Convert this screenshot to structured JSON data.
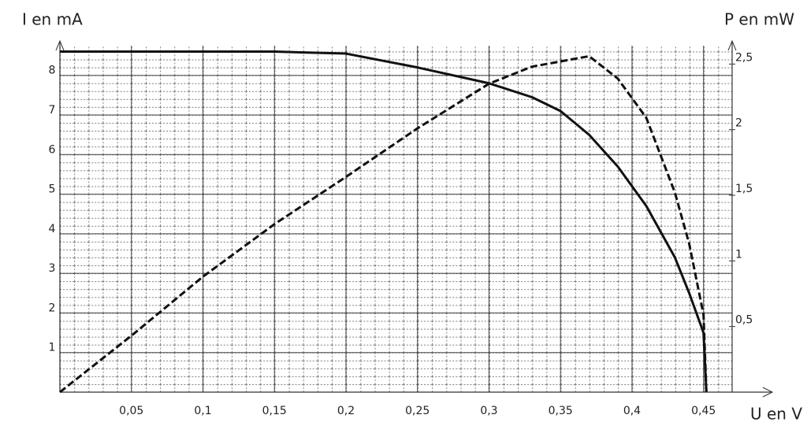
{
  "chart_data": {
    "type": "line",
    "y_label": "I en mA",
    "y2_label": "P en mW",
    "x_label": "U en V",
    "x": [
      0,
      0.05,
      0.1,
      0.15,
      0.2,
      0.25,
      0.3,
      0.33,
      0.35,
      0.37,
      0.39,
      0.41,
      0.43,
      0.44,
      0.45,
      0.452
    ],
    "series": [
      {
        "color": "#111111",
        "style": "solid",
        "values": [
          8.6,
          8.6,
          8.6,
          8.6,
          8.55,
          8.2,
          7.8,
          7.45,
          7.1,
          6.5,
          5.7,
          4.7,
          3.4,
          2.5,
          1.5,
          0
        ]
      },
      {
        "color": "#111111",
        "style": "dashed",
        "axis": "y2",
        "values": [
          0,
          0.43,
          0.88,
          1.28,
          1.64,
          2.01,
          2.35,
          2.48,
          2.52,
          2.56,
          2.39,
          2.09,
          1.52,
          1.13,
          0.59,
          0
        ]
      }
    ],
    "xlim": [
      0,
      0.47
    ],
    "xticks": [
      {
        "value": 0.05,
        "label": "0,05"
      },
      {
        "value": 0.1,
        "label": "0,1"
      },
      {
        "value": 0.15,
        "label": "0,15"
      },
      {
        "value": 0.2,
        "label": "0,2"
      },
      {
        "value": 0.25,
        "label": "0,25"
      },
      {
        "value": 0.3,
        "label": "0,3"
      },
      {
        "value": 0.35,
        "label": "0,35"
      },
      {
        "value": 0.4,
        "label": "0,4"
      },
      {
        "value": 0.45,
        "label": "0,45"
      }
    ],
    "ylim": [
      0,
      8.75
    ],
    "yticks": [
      1,
      2,
      3,
      4,
      5,
      6,
      7,
      8
    ],
    "y2lim": [
      0,
      2.64
    ],
    "y2ticks": [
      {
        "value": 0.5,
        "label": "0,5"
      },
      1,
      {
        "value": 1.5,
        "label": "1,5"
      },
      2,
      {
        "value": 2.5,
        "label": "2,5"
      }
    ],
    "grid": true
  }
}
